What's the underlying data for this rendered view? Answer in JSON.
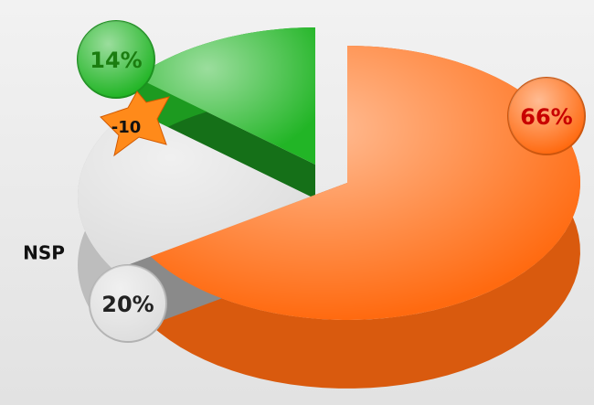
{
  "chart_data": {
    "type": "pie",
    "categories": [
      null,
      "NSP",
      null
    ],
    "values": [
      66,
      20,
      14
    ],
    "value_labels": [
      "66%",
      "20%",
      "14%"
    ],
    "colors": [
      "#ff6a10",
      "#dedede",
      "#22b526"
    ],
    "annotations": [
      "-10"
    ]
  }
}
